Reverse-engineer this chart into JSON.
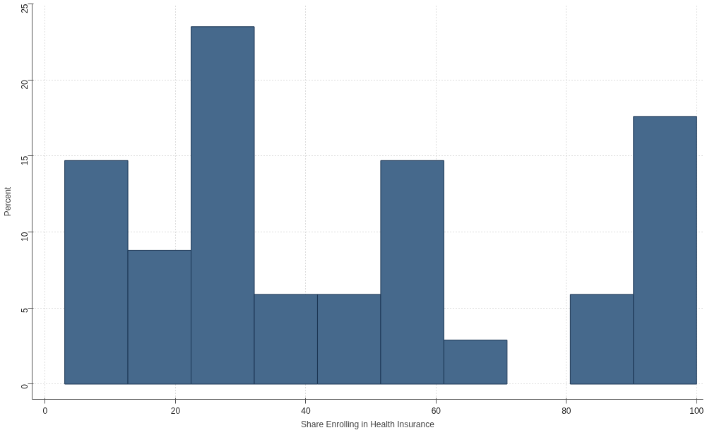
{
  "chart_data": {
    "type": "histogram",
    "xlabel": "Share Enrolling in Health Insurance",
    "ylabel": "Percent",
    "bins": [
      3,
      12.7,
      22.4,
      32.1,
      41.8,
      51.5,
      61.2,
      70.9,
      80.6,
      90.3,
      100
    ],
    "values": [
      14.7,
      8.8,
      23.5,
      5.9,
      5.9,
      14.7,
      2.9,
      0,
      5.9,
      17.6
    ],
    "color": "#46698c",
    "xlim": [
      -2,
      101
    ],
    "ylim": [
      -1,
      25
    ],
    "xticks": [
      0,
      20,
      40,
      60,
      80,
      100
    ],
    "yticks": [
      0,
      5,
      10,
      15,
      20,
      25
    ],
    "grid": true
  }
}
